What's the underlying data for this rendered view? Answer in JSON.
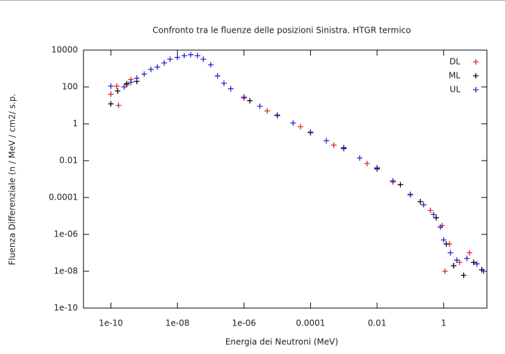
{
  "chart_data": {
    "type": "scatter",
    "title": "Confronto tra le fluenze delle posizioni Sinistra. HTGR termico",
    "x_label": "Energia dei Neutroni (MeV)",
    "y_label": "Fluenza Differenziale (n / MeV / cm2/ s.p.",
    "x_scale": "log",
    "y_scale": "log",
    "legend": "top-right",
    "xlim": [
      1.5e-11,
      20
    ],
    "ylim": [
      1e-10,
      10000
    ],
    "xticks": [
      {
        "value": 1e-10,
        "label": "1e-10"
      },
      {
        "value": 1e-08,
        "label": "1e-08"
      },
      {
        "value": 1e-06,
        "label": "1e-06"
      },
      0.0001,
      0.01,
      1
    ],
    "yticks": [
      {
        "value": 1e-10,
        "label": "1e-10"
      },
      {
        "value": 1e-08,
        "label": "1e-08"
      },
      {
        "value": 1e-06,
        "label": "1e-06"
      },
      0.0001,
      0.01,
      1,
      100,
      10000
    ],
    "series": [
      {
        "name": "DL",
        "color": "#e02020",
        "x": [
          1e-10,
          1.5e-10,
          1.7e-10,
          3e-10,
          4e-10,
          1e-06,
          5e-06,
          5e-05,
          0.0005,
          0.005,
          0.03,
          0.1,
          0.4,
          0.9,
          1.1,
          1.5,
          3,
          6
        ],
        "values": [
          40,
          110,
          10,
          130,
          250,
          25,
          5,
          0.7,
          0.07,
          0.007,
          0.0007,
          0.00015,
          2e-05,
          3e-06,
          1e-08,
          3e-07,
          3e-08,
          1e-07
        ]
      },
      {
        "name": "ML",
        "color": "#000000",
        "x": [
          1e-10,
          1.6e-10,
          3e-10,
          6e-10,
          1.5e-06,
          1e-05,
          0.0001,
          0.001,
          0.01,
          0.05,
          0.2,
          0.6,
          1.2,
          2,
          4,
          8,
          14
        ],
        "values": [
          12,
          60,
          150,
          200,
          18,
          2.8,
          0.33,
          0.05,
          0.004,
          0.0005,
          6e-05,
          8e-06,
          3e-07,
          2e-08,
          6e-09,
          3e-08,
          1.2e-08
        ]
      },
      {
        "name": "UL",
        "color": "#2020d0",
        "x": [
          1e-10,
          2.5e-10,
          4e-10,
          6e-10,
          1e-09,
          1.6e-09,
          2.5e-09,
          4e-09,
          6e-09,
          1e-08,
          1.6e-08,
          2.5e-08,
          4e-08,
          6e-08,
          1e-07,
          1.6e-07,
          2.5e-07,
          4e-07,
          1e-06,
          3e-06,
          1e-05,
          3e-05,
          0.0001,
          0.0003,
          0.001,
          0.003,
          0.01,
          0.03,
          0.1,
          0.25,
          0.5,
          0.8,
          1,
          1.6,
          2.5,
          5,
          10,
          16
        ],
        "values": [
          110,
          100,
          180,
          300,
          500,
          900,
          1200,
          2000,
          3200,
          4000,
          5000,
          5600,
          5000,
          3200,
          1600,
          400,
          160,
          80,
          28,
          9,
          3,
          1.1,
          0.35,
          0.12,
          0.045,
          0.014,
          0.0035,
          0.0008,
          0.00014,
          4e-05,
          1.2e-05,
          2.5e-06,
          5e-07,
          1e-07,
          4e-08,
          5e-08,
          2.5e-08,
          1e-08
        ]
      }
    ]
  }
}
